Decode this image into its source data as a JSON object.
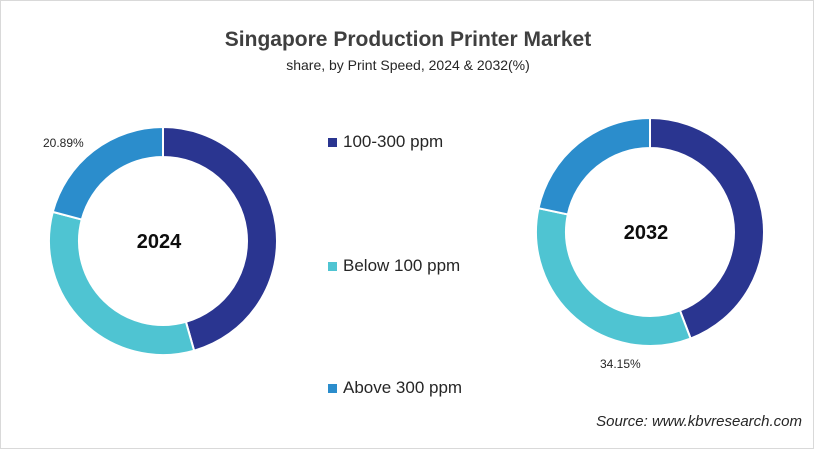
{
  "header": {
    "title": "Singapore Production Printer Market",
    "subtitle": "share, by Print Speed, 2024 & 2032(%)"
  },
  "source": "Source: www.kbvresearch.com",
  "colors": {
    "100-300 ppm": "#2a3590",
    "Below 100 ppm": "#4fc4d2",
    "Above 300 ppm": "#2b8dcc"
  },
  "chart_data": [
    {
      "type": "pie",
      "subtype": "donut",
      "center_label": "2024",
      "categories": [
        "100-300 ppm",
        "Below 100 ppm",
        "Above 300 ppm"
      ],
      "values": [
        45.6,
        33.51,
        20.89
      ],
      "data_labels": [
        "",
        "",
        "20.89%"
      ]
    },
    {
      "type": "pie",
      "subtype": "donut",
      "center_label": "2032",
      "categories": [
        "100-300 ppm",
        "Below 100 ppm",
        "Above 300 ppm"
      ],
      "values": [
        44.2,
        34.15,
        21.65
      ],
      "data_labels": [
        "",
        "34.15%",
        ""
      ]
    }
  ],
  "legend": {
    "items": [
      "100-300 ppm",
      "Below 100 ppm",
      "Above 300 ppm"
    ]
  }
}
